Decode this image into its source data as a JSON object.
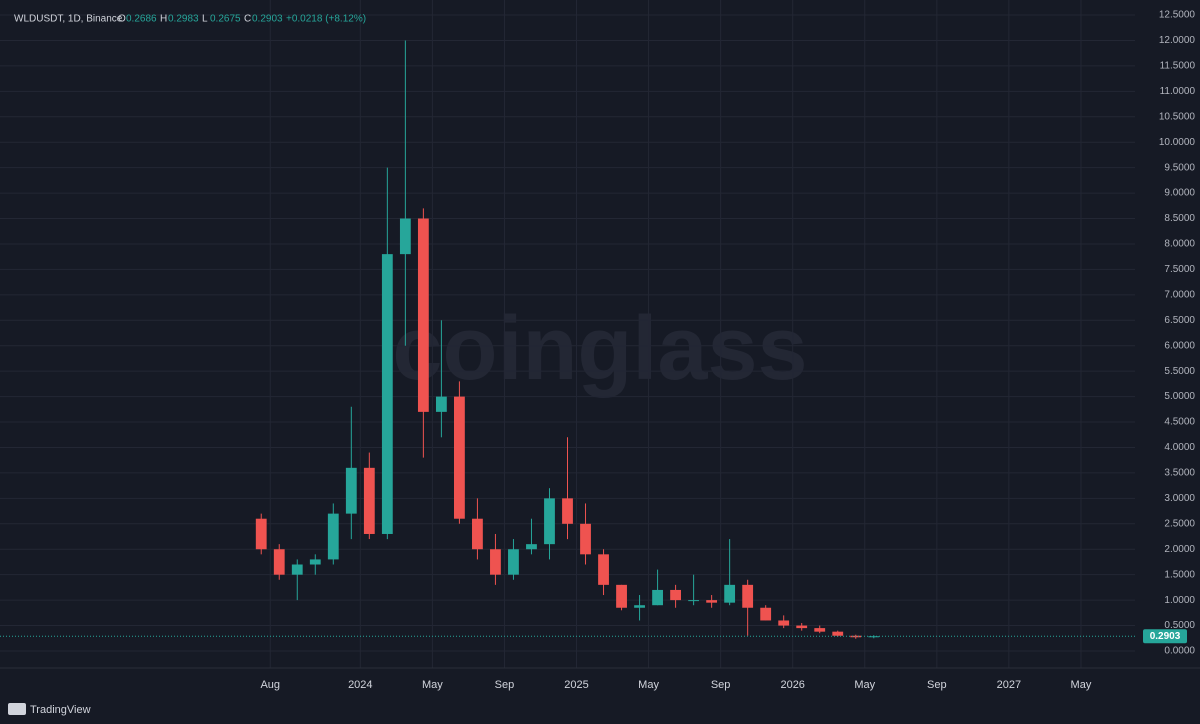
{
  "chart_data": {
    "type": "candlestick",
    "header": {
      "symbol": "WLDUSDT, 1D, Binance",
      "ohlc": [
        {
          "key": "O",
          "value": 0.2686
        },
        {
          "key": "H",
          "value": 0.2983
        },
        {
          "key": "L",
          "value": 0.2675
        },
        {
          "key": "C",
          "value": 0.2903
        }
      ],
      "change": "+0.0218 (+8.12%)"
    },
    "watermark": "coinglass",
    "brand": "TradingView",
    "up_color": "#26a69a",
    "down_color": "#ef5350",
    "grid": true,
    "last_price": 0.2903,
    "x": [
      "2023-07",
      "2023-08",
      "2023-09",
      "2023-10",
      "2023-11",
      "2023-12",
      "2024-01",
      "2024-02",
      "2024-03",
      "2024-04",
      "2024-05",
      "2024-06",
      "2024-07",
      "2024-08",
      "2024-09",
      "2024-10",
      "2024-11",
      "2024-12",
      "2025-01",
      "2025-02",
      "2025-03",
      "2025-04",
      "2025-05",
      "2025-06",
      "2025-07",
      "2025-08",
      "2025-09",
      "2025-10",
      "2025-11",
      "2025-12",
      "2026-01",
      "2026-02",
      "2026-03",
      "2026-04",
      "2026-05"
    ],
    "open": [
      2.6,
      2.0,
      1.5,
      1.7,
      1.8,
      2.7,
      3.6,
      2.3,
      7.8,
      8.5,
      4.7,
      5.0,
      2.6,
      2.0,
      1.5,
      2.0,
      2.1,
      3.0,
      2.5,
      1.9,
      1.3,
      0.85,
      0.9,
      1.2,
      1.0,
      1.0,
      0.95,
      1.3,
      0.85,
      0.6,
      0.5,
      0.45,
      0.38,
      0.3,
      0.27
    ],
    "high": [
      2.7,
      2.1,
      1.8,
      1.9,
      2.9,
      4.8,
      3.9,
      9.5,
      12.0,
      8.7,
      6.5,
      5.3,
      3.0,
      2.3,
      2.2,
      2.6,
      3.2,
      4.2,
      2.9,
      2.0,
      1.3,
      1.1,
      1.6,
      1.3,
      1.5,
      1.1,
      2.2,
      1.4,
      0.9,
      0.7,
      0.55,
      0.5,
      0.4,
      0.32,
      0.31
    ],
    "low": [
      1.9,
      1.4,
      1.0,
      1.5,
      1.7,
      2.2,
      2.2,
      2.2,
      6.0,
      3.8,
      4.2,
      2.5,
      1.8,
      1.3,
      1.4,
      1.9,
      1.8,
      2.2,
      1.7,
      1.1,
      0.8,
      0.6,
      0.9,
      0.85,
      0.9,
      0.85,
      0.9,
      0.3,
      0.6,
      0.45,
      0.4,
      0.35,
      0.28,
      0.24,
      0.25
    ],
    "close": [
      2.0,
      1.5,
      1.7,
      1.8,
      2.7,
      3.6,
      2.3,
      7.8,
      8.5,
      4.7,
      5.0,
      2.6,
      2.0,
      1.5,
      2.0,
      2.1,
      3.0,
      2.5,
      1.9,
      1.3,
      0.85,
      0.9,
      1.2,
      1.0,
      1.0,
      0.95,
      1.3,
      0.85,
      0.6,
      0.5,
      0.45,
      0.38,
      0.3,
      0.27,
      0.29
    ],
    "xlim": [
      "2022-05",
      "2027-08"
    ],
    "xticks": [
      {
        "value": "2023-08",
        "label": "Aug"
      },
      {
        "value": "2024-01",
        "label": "2024"
      },
      {
        "value": "2024-05",
        "label": "May"
      },
      {
        "value": "2024-09",
        "label": "Sep"
      },
      {
        "value": "2025-01",
        "label": "2025"
      },
      {
        "value": "2025-05",
        "label": "May"
      },
      {
        "value": "2025-09",
        "label": "Sep"
      },
      {
        "value": "2026-01",
        "label": "2026"
      },
      {
        "value": "2026-05",
        "label": "May"
      },
      {
        "value": "2026-09",
        "label": "Sep"
      },
      {
        "value": "2027-01",
        "label": "2027"
      },
      {
        "value": "2027-05",
        "label": "May"
      }
    ],
    "ylim": [
      0,
      12.5
    ],
    "yticks": [
      {
        "value": 0,
        "label": "0.0000"
      },
      {
        "value": 0.5,
        "label": "0.5000"
      },
      {
        "value": 1,
        "label": "1.0000"
      },
      {
        "value": 1.5,
        "label": "1.5000"
      },
      {
        "value": 2,
        "label": "2.0000"
      },
      {
        "value": 2.5,
        "label": "2.5000"
      },
      {
        "value": 3,
        "label": "3.0000"
      },
      {
        "value": 3.5,
        "label": "3.5000"
      },
      {
        "value": 4,
        "label": "4.0000"
      },
      {
        "value": 4.5,
        "label": "4.5000"
      },
      {
        "value": 5,
        "label": "5.0000"
      },
      {
        "value": 5.5,
        "label": "5.5000"
      },
      {
        "value": 6,
        "label": "6.0000"
      },
      {
        "value": 6.5,
        "label": "6.5000"
      },
      {
        "value": 7,
        "label": "7.0000"
      },
      {
        "value": 7.5,
        "label": "7.5000"
      },
      {
        "value": 8,
        "label": "8.0000"
      },
      {
        "value": 8.5,
        "label": "8.5000"
      },
      {
        "value": 9,
        "label": "9.0000"
      },
      {
        "value": 9.5,
        "label": "9.5000"
      },
      {
        "value": 10,
        "label": "10.0000"
      },
      {
        "value": 10.5,
        "label": "10.5000"
      },
      {
        "value": 11,
        "label": "11.0000"
      },
      {
        "value": 11.5,
        "label": "11.5000"
      },
      {
        "value": 12,
        "label": "12.0000"
      },
      {
        "value": 12.5,
        "label": "12.5000"
      }
    ]
  }
}
